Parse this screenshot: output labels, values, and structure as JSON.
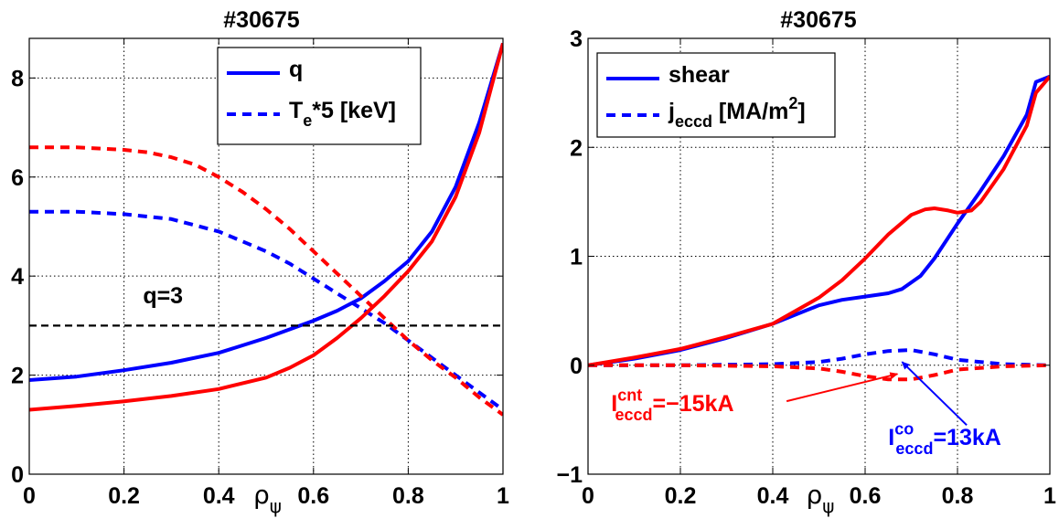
{
  "chart_data": [
    {
      "type": "line",
      "title": "#30675",
      "xlim": [
        0,
        1
      ],
      "ylim": [
        0,
        8.8
      ],
      "x_ticks": [
        {
          "value": 0,
          "label": "0"
        },
        {
          "value": 0.2,
          "label": "0.2"
        },
        {
          "value": 0.4,
          "label": "0.4"
        },
        {
          "value": 0.6,
          "label": "0.6"
        },
        {
          "value": 0.8,
          "label": "0.8"
        },
        {
          "value": 1,
          "label": "1"
        }
      ],
      "y_ticks": [
        {
          "value": 0,
          "label": "0"
        },
        {
          "value": 2,
          "label": "2"
        },
        {
          "value": 4,
          "label": "4"
        },
        {
          "value": 6,
          "label": "6"
        },
        {
          "value": 8,
          "label": "8"
        }
      ],
      "xlabel": {
        "main": "ρ",
        "sub": "ψ"
      },
      "grid": true,
      "legend": {
        "position": "top-right",
        "entries": [
          {
            "main": "q",
            "sup": "",
            "sub": "",
            "rest": "",
            "style": "solid"
          },
          {
            "main": "T",
            "sup": "",
            "sub": "e",
            "rest": "*5 [keV]",
            "style": "dashed"
          }
        ]
      },
      "series": [
        {
          "color": "#0000ff",
          "style": "solid",
          "x": [
            0,
            0.1,
            0.2,
            0.3,
            0.4,
            0.5,
            0.6,
            0.65,
            0.7,
            0.75,
            0.8,
            0.85,
            0.9,
            0.95,
            1.0
          ],
          "y": [
            1.9,
            1.97,
            2.1,
            2.25,
            2.45,
            2.75,
            3.1,
            3.3,
            3.55,
            3.9,
            4.3,
            4.9,
            5.8,
            7.1,
            8.7
          ]
        },
        {
          "color": "#0000ff",
          "style": "dashed",
          "x": [
            0,
            0.1,
            0.2,
            0.3,
            0.4,
            0.45,
            0.5,
            0.55,
            0.6,
            0.65,
            0.7,
            0.75,
            0.8,
            0.85,
            0.9,
            0.95,
            1.0
          ],
          "y": [
            5.3,
            5.3,
            5.25,
            5.15,
            4.9,
            4.7,
            4.5,
            4.25,
            3.95,
            3.65,
            3.35,
            3.05,
            2.7,
            2.35,
            2.0,
            1.65,
            1.3
          ]
        },
        {
          "color": "#ff0000",
          "style": "solid",
          "x": [
            0,
            0.1,
            0.2,
            0.3,
            0.4,
            0.5,
            0.55,
            0.6,
            0.65,
            0.7,
            0.75,
            0.8,
            0.85,
            0.9,
            0.95,
            1.0
          ],
          "y": [
            1.3,
            1.38,
            1.47,
            1.58,
            1.72,
            1.95,
            2.15,
            2.4,
            2.75,
            3.15,
            3.6,
            4.1,
            4.7,
            5.6,
            6.9,
            8.7
          ]
        },
        {
          "color": "#ff0000",
          "style": "dashed",
          "x": [
            0,
            0.1,
            0.2,
            0.25,
            0.3,
            0.35,
            0.4,
            0.45,
            0.5,
            0.55,
            0.6,
            0.65,
            0.7,
            0.75,
            0.8,
            0.85,
            0.9,
            0.95,
            1.0
          ],
          "y": [
            6.6,
            6.6,
            6.55,
            6.5,
            6.4,
            6.25,
            6.0,
            5.7,
            5.35,
            4.95,
            4.5,
            4.05,
            3.6,
            3.15,
            2.7,
            2.3,
            1.95,
            1.55,
            1.2
          ]
        },
        {
          "color": "#000000",
          "style": "dashed",
          "x": [
            0,
            1
          ],
          "y": [
            3,
            3
          ]
        }
      ],
      "annotations": [
        {
          "x": 0.24,
          "y": 3.45,
          "color": "#000000",
          "main": "q=3",
          "sup": "",
          "sub": "",
          "rest": ""
        }
      ]
    },
    {
      "type": "line",
      "title": "#30675",
      "xlim": [
        0,
        1
      ],
      "ylim": [
        -1,
        3
      ],
      "x_ticks": [
        {
          "value": 0,
          "label": "0"
        },
        {
          "value": 0.2,
          "label": "0.2"
        },
        {
          "value": 0.4,
          "label": "0.4"
        },
        {
          "value": 0.6,
          "label": "0.6"
        },
        {
          "value": 0.8,
          "label": "0.8"
        },
        {
          "value": 1,
          "label": "1"
        }
      ],
      "y_ticks": [
        {
          "value": -1,
          "label": "−1"
        },
        {
          "value": 0,
          "label": "0"
        },
        {
          "value": 1,
          "label": "1"
        },
        {
          "value": 2,
          "label": "2"
        },
        {
          "value": 3,
          "label": "3"
        }
      ],
      "xlabel": {
        "main": "ρ",
        "sub": "ψ"
      },
      "grid": true,
      "legend": {
        "position": "top-left",
        "entries": [
          {
            "main": "shear",
            "sup": "",
            "sub": "",
            "rest": "",
            "style": "solid"
          },
          {
            "main": "j",
            "sup": "",
            "sub": "eccd",
            "rest": " [MA/m",
            "tail_sup": "2",
            "tail": "]",
            "style": "dashed"
          }
        ]
      },
      "series": [
        {
          "color": "#0000ff",
          "style": "solid",
          "x": [
            0,
            0.1,
            0.2,
            0.3,
            0.4,
            0.5,
            0.55,
            0.6,
            0.65,
            0.68,
            0.72,
            0.75,
            0.8,
            0.85,
            0.9,
            0.95,
            0.97,
            1.0
          ],
          "y": [
            0,
            0.06,
            0.14,
            0.25,
            0.38,
            0.55,
            0.6,
            0.63,
            0.66,
            0.7,
            0.82,
            0.98,
            1.3,
            1.6,
            1.92,
            2.3,
            2.6,
            2.65
          ]
        },
        {
          "color": "#0000ff",
          "style": "dashed",
          "x": [
            0,
            0.2,
            0.4,
            0.5,
            0.55,
            0.6,
            0.65,
            0.7,
            0.75,
            0.8,
            0.9,
            1.0
          ],
          "y": [
            0,
            0,
            0.01,
            0.03,
            0.06,
            0.1,
            0.13,
            0.14,
            0.1,
            0.05,
            0.01,
            0
          ]
        },
        {
          "color": "#ff0000",
          "style": "solid",
          "x": [
            0,
            0.1,
            0.2,
            0.3,
            0.4,
            0.5,
            0.55,
            0.6,
            0.65,
            0.7,
            0.73,
            0.75,
            0.78,
            0.8,
            0.83,
            0.85,
            0.9,
            0.95,
            0.97,
            1.0
          ],
          "y": [
            0,
            0.07,
            0.15,
            0.26,
            0.38,
            0.62,
            0.78,
            0.98,
            1.2,
            1.38,
            1.43,
            1.44,
            1.42,
            1.4,
            1.42,
            1.5,
            1.8,
            2.2,
            2.5,
            2.65
          ]
        },
        {
          "color": "#ff0000",
          "style": "dashed",
          "x": [
            0,
            0.2,
            0.4,
            0.5,
            0.55,
            0.6,
            0.65,
            0.7,
            0.75,
            0.8,
            0.9,
            1.0
          ],
          "y": [
            0,
            0,
            -0.01,
            -0.03,
            -0.06,
            -0.1,
            -0.13,
            -0.13,
            -0.09,
            -0.04,
            -0.01,
            0
          ]
        }
      ],
      "annotations": [
        {
          "x": 0.05,
          "y": -0.42,
          "color": "#ff0000",
          "main": "I",
          "sup": "cnt",
          "sub": "eccd",
          "rest": "=−15kA"
        },
        {
          "x": 0.65,
          "y": -0.73,
          "color": "#0000ff",
          "main": "I",
          "sup": "co",
          "sub": "eccd",
          "rest": "=13kA"
        }
      ],
      "arrows": [
        {
          "color": "#ff0000",
          "from": [
            0.43,
            -0.33
          ],
          "to": [
            0.67,
            -0.08
          ]
        },
        {
          "color": "#0000ff",
          "from": [
            0.82,
            -0.55
          ],
          "to": [
            0.68,
            0.03
          ]
        }
      ]
    }
  ]
}
